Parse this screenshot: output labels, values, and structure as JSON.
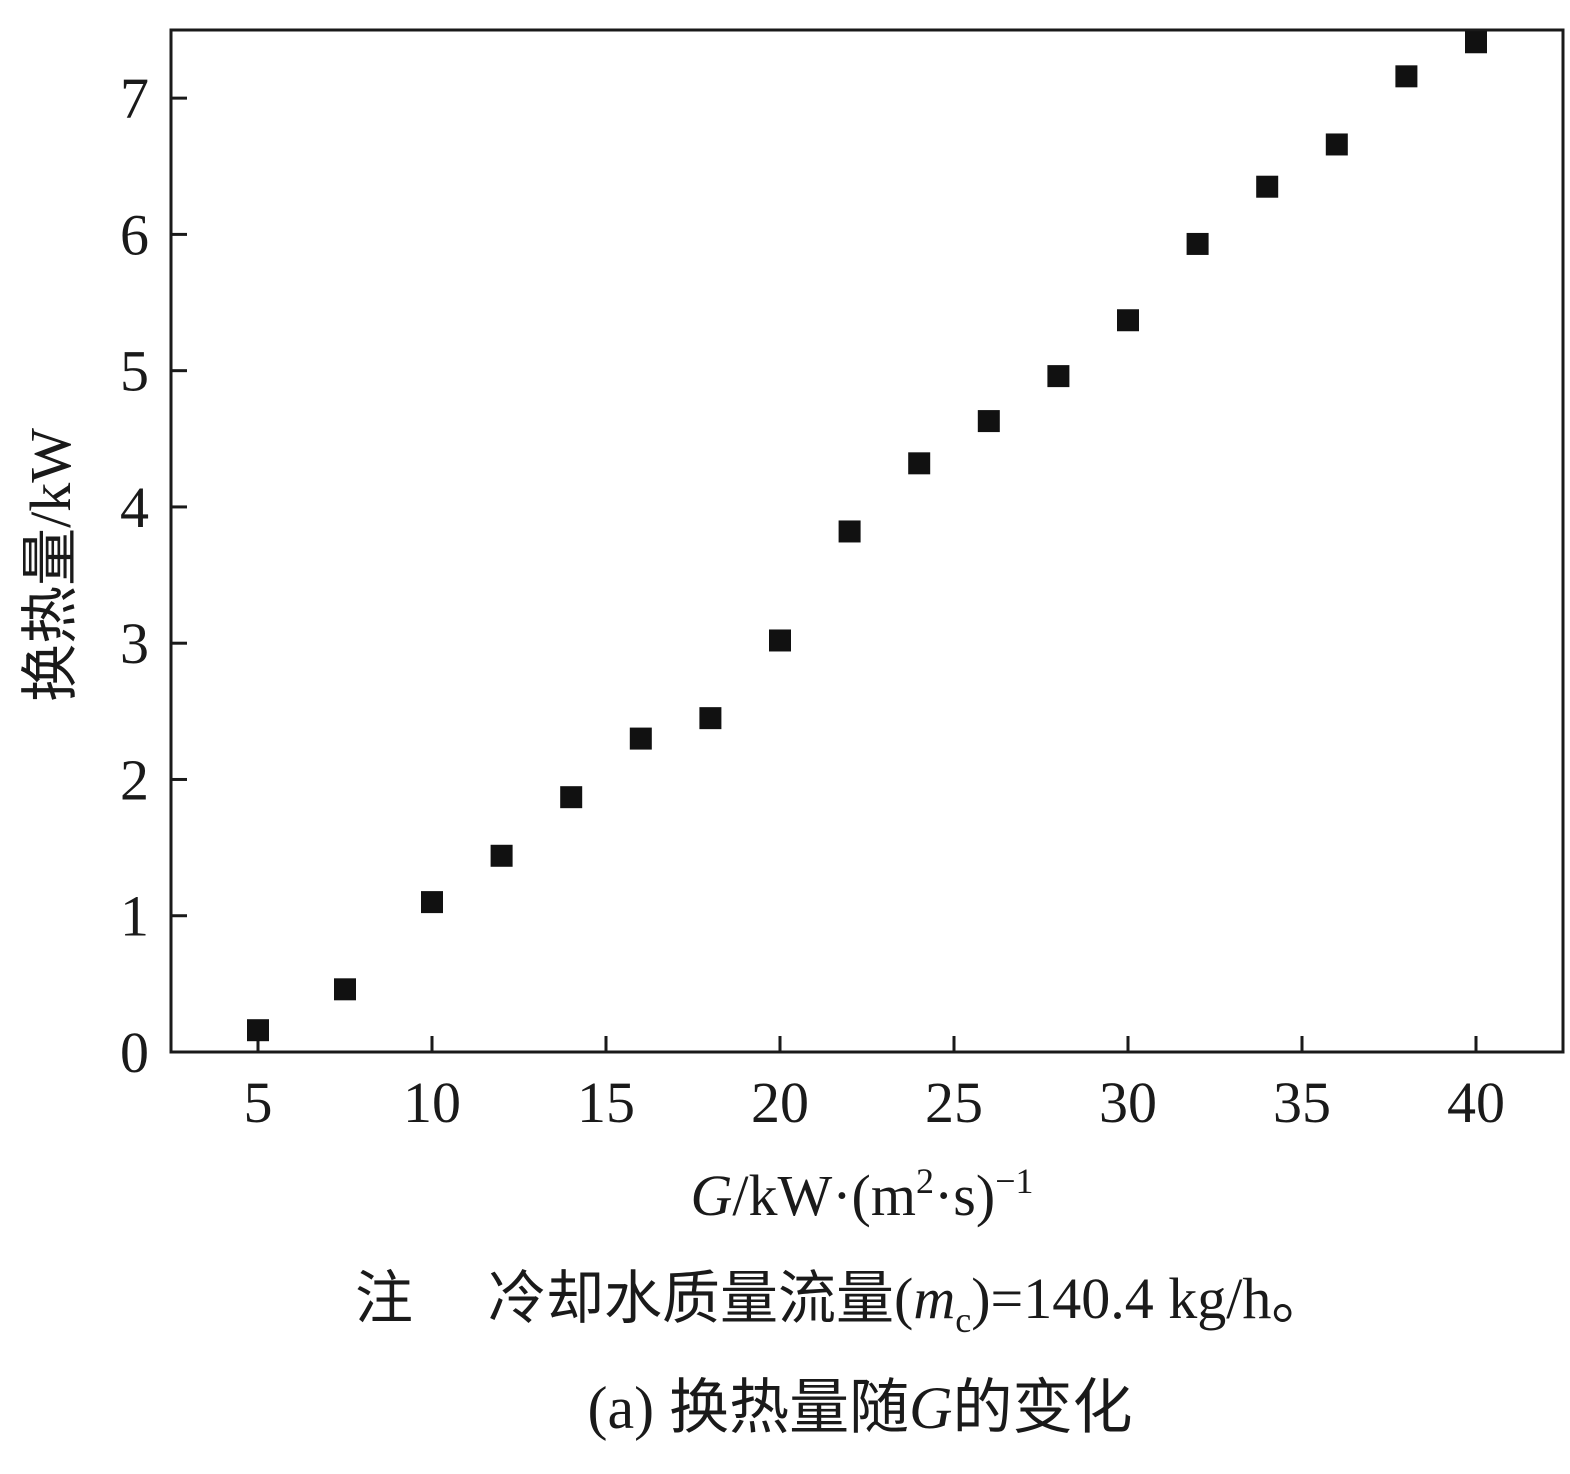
{
  "chart_data": {
    "type": "scatter",
    "x": [
      5,
      7.5,
      10,
      12,
      14,
      16,
      18,
      20,
      22,
      24,
      26,
      28,
      30,
      32,
      34,
      36,
      38,
      40
    ],
    "y": [
      0.16,
      0.46,
      1.1,
      1.44,
      1.87,
      2.3,
      2.45,
      3.02,
      3.82,
      4.32,
      4.63,
      4.96,
      5.37,
      5.93,
      6.35,
      6.66,
      7.16,
      7.41
    ],
    "xlim": [
      2.5,
      42.5
    ],
    "ylim": [
      0,
      7.5
    ],
    "xticks": [
      5,
      10,
      15,
      20,
      25,
      30,
      35,
      40
    ],
    "yticks": [
      0,
      1,
      2,
      3,
      4,
      5,
      6,
      7
    ],
    "xlabel": {
      "var": "G",
      "unit_prefix": "/kW·(m",
      "unit_sup": "2",
      "unit_mid": "·s)",
      "unit_exp": "−1"
    },
    "ylabel": "换热量/kW",
    "marker": "square",
    "marker_color": "#111111",
    "grid": false,
    "legend": "none"
  },
  "note": {
    "label": "注",
    "text_prefix": "冷却水质量流量(",
    "symbol": "m",
    "symbol_sub": "c",
    "text_suffix": ")=140.4 kg/h。"
  },
  "caption": {
    "prefix": "(a) 换热量随",
    "symbol": "G",
    "suffix": "的变化"
  }
}
